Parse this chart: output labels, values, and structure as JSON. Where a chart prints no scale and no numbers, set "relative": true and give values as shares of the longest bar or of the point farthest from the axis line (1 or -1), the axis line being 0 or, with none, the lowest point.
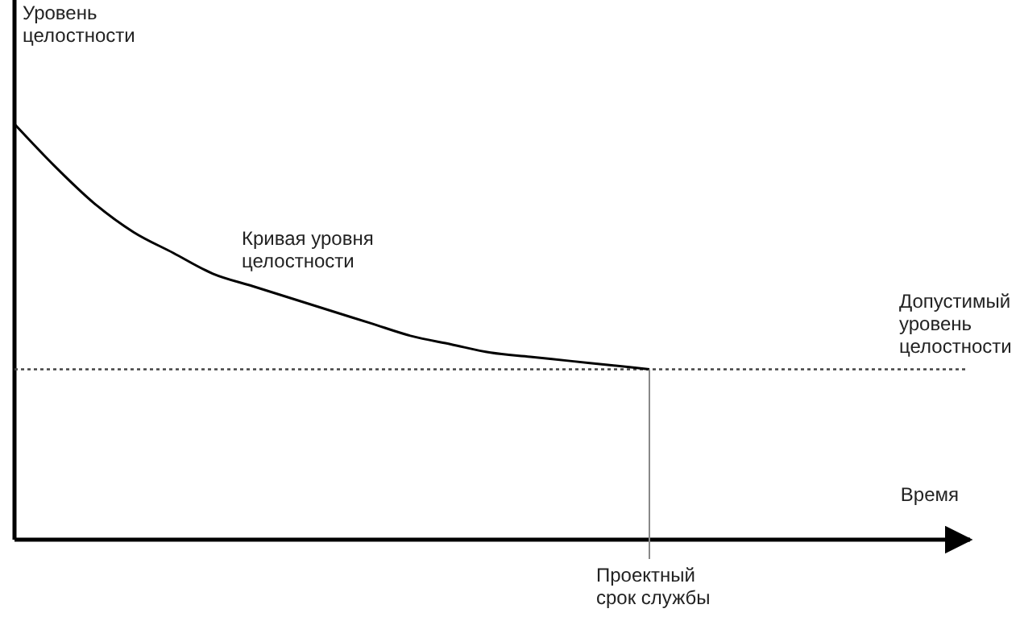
{
  "chart_data": {
    "type": "line",
    "relative": true,
    "ylabel": "Уровень целостности",
    "xlabel": "Время",
    "categories": [
      null,
      null,
      null,
      null,
      null,
      null,
      null,
      null,
      null,
      null,
      null,
      null,
      null,
      null,
      null,
      null,
      null,
      null,
      null,
      null,
      null,
      null,
      null,
      null,
      null
    ],
    "series": [
      {
        "color": "#000000",
        "values": [
          1,
          0.9,
          0.81,
          0.74,
          0.69,
          0.64,
          0.61,
          0.58,
          0.55,
          0.52,
          0.49,
          0.47,
          0.45,
          0.44,
          0.43,
          0.42,
          0.41,
          null,
          null,
          null,
          null,
          null,
          null,
          null,
          null
        ]
      }
    ],
    "annotations": [
      "Кривая уровня целостности",
      "Проектный срок службы"
    ],
    "ref_lines": [
      {
        "axis": "y",
        "value": 0.41,
        "label": "Допустимый уровень целостности",
        "line_style": "dotted"
      }
    ],
    "marker": "none",
    "line_style": "solid"
  }
}
